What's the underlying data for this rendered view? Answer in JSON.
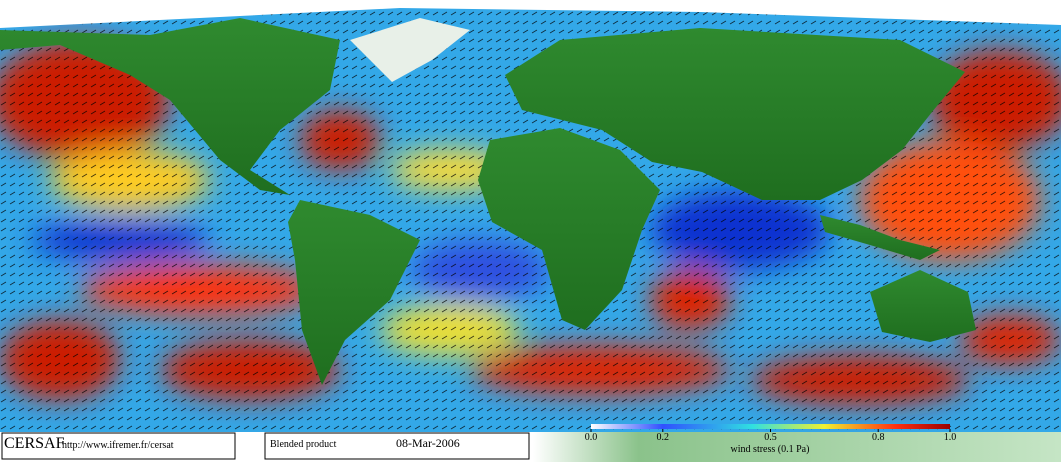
{
  "footer": {
    "logo": "CERSAF",
    "url": "http://www.ifremer.fr/cersat",
    "product": "Blended product",
    "date": "08-Mar-2006"
  },
  "colorbar": {
    "label": "wind stress (0.1 Pa)",
    "range": [
      0,
      1
    ],
    "ticks": [
      {
        "value": 0,
        "label": "0.0"
      },
      0.2,
      0.5,
      0.8,
      {
        "value": 1,
        "label": "1.0"
      }
    ]
  }
}
